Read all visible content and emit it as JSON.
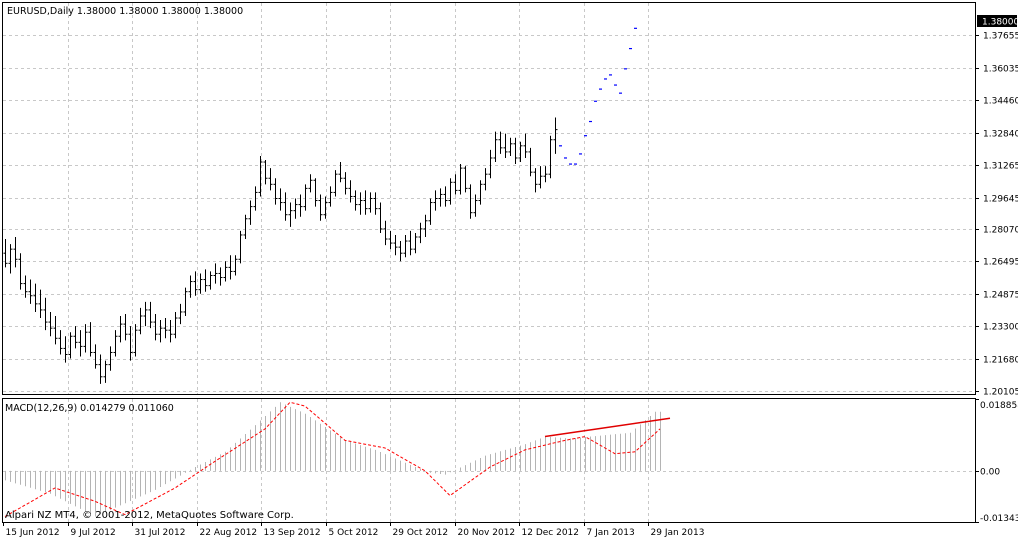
{
  "window": {
    "main_title": "EURUSD,Daily  1.38000 1.38000 1.38000 1.38000",
    "macd_title": "MACD(12,26,9) 0.014279 0.011060",
    "watermark": "Alpari NZ MT4, © 2001-2012, MetaQuotes Software Corp.",
    "current_price_label": "1.38000"
  },
  "colors": {
    "background": "#ffffff",
    "grid": "#c8c8c8",
    "price_bars": "#000000",
    "forecast_marks": "#0000ff",
    "macd_histogram": "#b4b4b4",
    "macd_signal": "#ff0000",
    "trend_line": "#e00000",
    "price_tag_bg": "#000000",
    "price_tag_text": "#ffffff"
  },
  "chart_data": [
    {
      "type": "ohlc",
      "symbol": "EURUSD",
      "timeframe": "Daily",
      "ylim": [
        1.1995,
        1.3925
      ],
      "y_ticks": [
        "1.37655",
        "1.36035",
        "1.34460",
        "1.32840",
        "1.31265",
        "1.29645",
        "1.28070",
        "1.26495",
        "1.24875",
        "1.23300",
        "1.21680",
        "1.20105"
      ],
      "x_ticks": [
        "15 Jun 2012",
        "9 Jul 2012",
        "31 Jul 2012",
        "22 Aug 2012",
        "13 Sep 2012",
        "5 Oct 2012",
        "29 Oct 2012",
        "20 Nov 2012",
        "12 Dec 2012",
        "7 Jan 2013",
        "29 Jan 2013"
      ],
      "bars": [
        [
          1.269,
          1.276,
          1.262,
          1.264
        ],
        [
          1.264,
          1.2735,
          1.259,
          1.271
        ],
        [
          1.271,
          1.277,
          1.262,
          1.266
        ],
        [
          1.266,
          1.269,
          1.251,
          1.254
        ],
        [
          1.254,
          1.258,
          1.247,
          1.25
        ],
        [
          1.25,
          1.256,
          1.244,
          1.248
        ],
        [
          1.248,
          1.254,
          1.24,
          1.244
        ],
        [
          1.244,
          1.251,
          1.237,
          1.241
        ],
        [
          1.241,
          1.247,
          1.231,
          1.235
        ],
        [
          1.235,
          1.24,
          1.228,
          1.232
        ],
        [
          1.232,
          1.238,
          1.224,
          1.227
        ],
        [
          1.227,
          1.231,
          1.219,
          1.222
        ],
        [
          1.222,
          1.228,
          1.215,
          1.219
        ],
        [
          1.219,
          1.23,
          1.217,
          1.228
        ],
        [
          1.228,
          1.233,
          1.222,
          1.225
        ],
        [
          1.225,
          1.231,
          1.218,
          1.223
        ],
        [
          1.223,
          1.234,
          1.22,
          1.23
        ],
        [
          1.23,
          1.235,
          1.218,
          1.22
        ],
        [
          1.22,
          1.224,
          1.212,
          1.214
        ],
        [
          1.214,
          1.219,
          1.2045,
          1.208
        ],
        [
          1.208,
          1.216,
          1.205,
          1.214
        ],
        [
          1.214,
          1.223,
          1.211,
          1.22
        ],
        [
          1.22,
          1.231,
          1.218,
          1.228
        ],
        [
          1.228,
          1.238,
          1.225,
          1.234
        ],
        [
          1.234,
          1.239,
          1.226,
          1.229
        ],
        [
          1.229,
          1.233,
          1.216,
          1.22
        ],
        [
          1.22,
          1.234,
          1.218,
          1.231
        ],
        [
          1.231,
          1.242,
          1.229,
          1.238
        ],
        [
          1.238,
          1.245,
          1.233,
          1.241
        ],
        [
          1.241,
          1.245,
          1.232,
          1.235
        ],
        [
          1.235,
          1.239,
          1.226,
          1.229
        ],
        [
          1.229,
          1.236,
          1.225,
          1.232
        ],
        [
          1.232,
          1.237,
          1.227,
          1.231
        ],
        [
          1.231,
          1.236,
          1.225,
          1.229
        ],
        [
          1.229,
          1.24,
          1.227,
          1.237
        ],
        [
          1.237,
          1.244,
          1.234,
          1.24
        ],
        [
          1.24,
          1.252,
          1.238,
          1.25
        ],
        [
          1.25,
          1.258,
          1.247,
          1.255
        ],
        [
          1.255,
          1.26,
          1.248,
          1.251
        ],
        [
          1.251,
          1.259,
          1.249,
          1.256
        ],
        [
          1.256,
          1.261,
          1.25,
          1.253
        ],
        [
          1.253,
          1.26,
          1.251,
          1.258
        ],
        [
          1.258,
          1.264,
          1.254,
          1.259
        ],
        [
          1.259,
          1.262,
          1.253,
          1.257
        ],
        [
          1.257,
          1.265,
          1.255,
          1.262
        ],
        [
          1.262,
          1.268,
          1.256,
          1.26
        ],
        [
          1.26,
          1.268,
          1.258,
          1.266
        ],
        [
          1.266,
          1.28,
          1.264,
          1.278
        ],
        [
          1.278,
          1.288,
          1.276,
          1.286
        ],
        [
          1.286,
          1.295,
          1.283,
          1.292
        ],
        [
          1.292,
          1.302,
          1.29,
          1.299
        ],
        [
          1.299,
          1.317,
          1.297,
          1.314
        ],
        [
          1.314,
          1.315,
          1.303,
          1.306
        ],
        [
          1.306,
          1.311,
          1.3,
          1.303
        ],
        [
          1.303,
          1.306,
          1.293,
          1.296
        ],
        [
          1.296,
          1.301,
          1.29,
          1.294
        ],
        [
          1.294,
          1.299,
          1.285,
          1.288
        ],
        [
          1.288,
          1.294,
          1.282,
          1.29
        ],
        [
          1.29,
          1.296,
          1.286,
          1.293
        ],
        [
          1.293,
          1.298,
          1.287,
          1.292
        ],
        [
          1.292,
          1.303,
          1.29,
          1.301
        ],
        [
          1.301,
          1.308,
          1.299,
          1.305
        ],
        [
          1.305,
          1.306,
          1.292,
          1.295
        ],
        [
          1.295,
          1.298,
          1.285,
          1.288
        ],
        [
          1.288,
          1.297,
          1.286,
          1.294
        ],
        [
          1.294,
          1.302,
          1.292,
          1.299
        ],
        [
          1.299,
          1.31,
          1.297,
          1.308
        ],
        [
          1.308,
          1.314,
          1.304,
          1.306
        ],
        [
          1.306,
          1.309,
          1.298,
          1.301
        ],
        [
          1.301,
          1.305,
          1.294,
          1.297
        ],
        [
          1.297,
          1.3,
          1.29,
          1.293
        ],
        [
          1.293,
          1.299,
          1.288,
          1.295
        ],
        [
          1.295,
          1.3,
          1.288,
          1.291
        ],
        [
          1.291,
          1.299,
          1.289,
          1.296
        ],
        [
          1.296,
          1.299,
          1.288,
          1.291
        ],
        [
          1.291,
          1.294,
          1.279,
          1.281
        ],
        [
          1.281,
          1.285,
          1.273,
          1.276
        ],
        [
          1.276,
          1.28,
          1.271,
          1.274
        ],
        [
          1.274,
          1.278,
          1.268,
          1.272
        ],
        [
          1.272,
          1.275,
          1.265,
          1.269
        ],
        [
          1.269,
          1.278,
          1.267,
          1.275
        ],
        [
          1.275,
          1.28,
          1.268,
          1.271
        ],
        [
          1.271,
          1.279,
          1.269,
          1.277
        ],
        [
          1.277,
          1.284,
          1.274,
          1.281
        ],
        [
          1.281,
          1.288,
          1.277,
          1.285
        ],
        [
          1.285,
          1.296,
          1.283,
          1.294
        ],
        [
          1.294,
          1.3,
          1.29,
          1.296
        ],
        [
          1.296,
          1.301,
          1.292,
          1.298
        ],
        [
          1.298,
          1.302,
          1.292,
          1.295
        ],
        [
          1.295,
          1.306,
          1.293,
          1.304
        ],
        [
          1.304,
          1.308,
          1.298,
          1.3
        ],
        [
          1.3,
          1.313,
          1.298,
          1.311
        ],
        [
          1.311,
          1.312,
          1.299,
          1.301
        ],
        [
          1.301,
          1.303,
          1.286,
          1.289
        ],
        [
          1.289,
          1.298,
          1.287,
          1.295
        ],
        [
          1.295,
          1.305,
          1.293,
          1.303
        ],
        [
          1.303,
          1.311,
          1.3,
          1.308
        ],
        [
          1.308,
          1.32,
          1.306,
          1.316
        ],
        [
          1.316,
          1.329,
          1.314,
          1.325
        ],
        [
          1.325,
          1.329,
          1.318,
          1.321
        ],
        [
          1.321,
          1.328,
          1.316,
          1.319
        ],
        [
          1.319,
          1.326,
          1.317,
          1.323
        ],
        [
          1.323,
          1.326,
          1.313,
          1.316
        ],
        [
          1.316,
          1.324,
          1.314,
          1.322
        ],
        [
          1.322,
          1.328,
          1.316,
          1.319
        ],
        [
          1.319,
          1.321,
          1.307,
          1.309
        ],
        [
          1.309,
          1.311,
          1.299,
          1.303
        ],
        [
          1.303,
          1.312,
          1.301,
          1.307
        ],
        [
          1.307,
          1.312,
          1.304,
          1.308
        ],
        [
          1.308,
          1.327,
          1.306,
          1.325
        ],
        [
          1.325,
          1.336,
          1.318,
          1.33
        ]
      ],
      "forecast": [
        1.322,
        1.316,
        1.313,
        1.313,
        1.318,
        1.327,
        1.334,
        1.344,
        1.35,
        1.355,
        1.357,
        1.352,
        1.348,
        1.36,
        1.37,
        1.38
      ]
    },
    {
      "type": "macd",
      "name": "MACD(12,26,9)",
      "ylim": [
        -0.013432,
        0.018858
      ],
      "y_ticks": [
        "0.018858",
        "0.00",
        "-0.013432"
      ],
      "histogram_keypoints": [
        [
          0,
          -0.0025
        ],
        [
          9,
          -0.006
        ],
        [
          18,
          -0.012
        ],
        [
          30,
          -0.005
        ],
        [
          38,
          0.001
        ],
        [
          44,
          0.005
        ],
        [
          50,
          0.012
        ],
        [
          55,
          0.018
        ],
        [
          60,
          0.015
        ],
        [
          68,
          0.008
        ],
        [
          74,
          0.0055
        ],
        [
          82,
          0.001
        ],
        [
          85,
          -0.0005
        ],
        [
          88,
          -0.001
        ],
        [
          96,
          0.004
        ],
        [
          104,
          0.007
        ],
        [
          108,
          0.009
        ],
        [
          113,
          0.0085
        ],
        [
          125,
          0.01
        ],
        [
          130,
          0.0155
        ]
      ],
      "signal_keypoints": [
        [
          0,
          -0.012
        ],
        [
          10,
          -0.0045
        ],
        [
          18,
          -0.008
        ],
        [
          24,
          -0.0115
        ],
        [
          34,
          -0.0045
        ],
        [
          42,
          0.0025
        ],
        [
          52,
          0.011
        ],
        [
          57,
          0.018
        ],
        [
          60,
          0.017
        ],
        [
          68,
          0.008
        ],
        [
          76,
          0.006
        ],
        [
          84,
          0.0
        ],
        [
          89,
          -0.0065
        ],
        [
          97,
          0.001
        ],
        [
          104,
          0.0055
        ],
        [
          112,
          0.008
        ],
        [
          116,
          0.009
        ],
        [
          122,
          0.0045
        ],
        [
          126,
          0.005
        ],
        [
          131,
          0.011
        ]
      ],
      "trendline": [
        [
          108,
          0.009
        ],
        [
          133,
          0.0138
        ]
      ]
    }
  ]
}
